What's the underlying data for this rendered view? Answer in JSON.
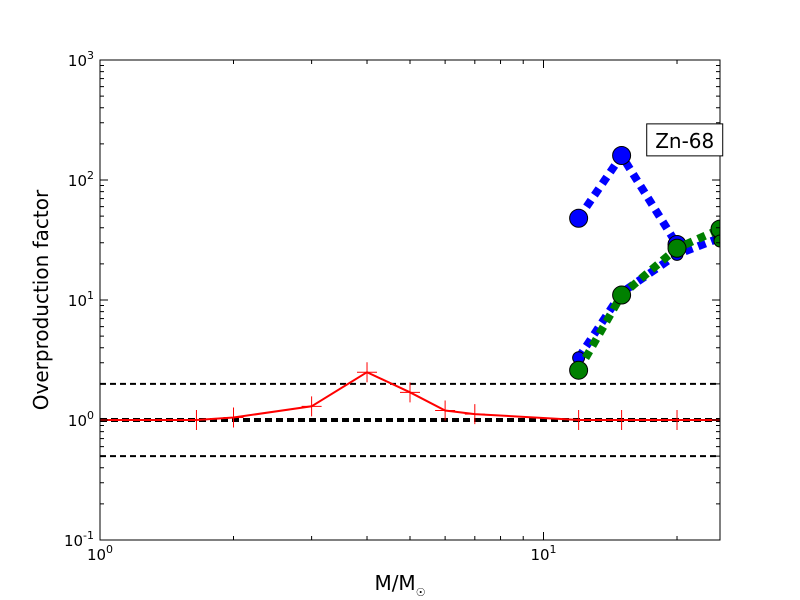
{
  "chart_data": {
    "type": "line",
    "xscale": "log",
    "yscale": "log",
    "xlim": [
      1,
      25
    ],
    "ylim": [
      0.1,
      1000
    ],
    "xlabel": "M/M",
    "xlabel_sub": "☉",
    "ylabel": "Overproduction factor",
    "x_ticks": [
      {
        "value": 1,
        "base": "10",
        "exp": "0"
      },
      {
        "value": 10,
        "base": "10",
        "exp": "1"
      }
    ],
    "y_ticks": [
      {
        "value": 0.1,
        "base": "10",
        "exp": "-1"
      },
      {
        "value": 1,
        "base": "10",
        "exp": "0"
      },
      {
        "value": 10,
        "base": "10",
        "exp": "1"
      },
      {
        "value": 100,
        "base": "10",
        "exp": "2"
      },
      {
        "value": 1000,
        "base": "10",
        "exp": "3"
      }
    ],
    "hlines": [
      {
        "y": 2,
        "style": "dashed",
        "width": "thin",
        "color": "#000000"
      },
      {
        "y": 1,
        "style": "dashed",
        "width": "thick",
        "color": "#000000"
      },
      {
        "y": 0.5,
        "style": "dashed",
        "width": "thin",
        "color": "#000000"
      }
    ],
    "series": [
      {
        "color": "#ff0000",
        "style": "solid",
        "marker": "plus",
        "x": [
          1.0,
          1.65,
          2.0,
          3.0,
          4.0,
          5.0,
          6.0,
          7.0,
          12.0,
          15.0,
          20.0,
          25.0
        ],
        "y": [
          1.0,
          1.0,
          1.05,
          1.3,
          2.5,
          1.7,
          1.2,
          1.12,
          1.0,
          1.0,
          1.0,
          1.0
        ]
      },
      {
        "color": "#0000ff",
        "style": "dotted",
        "marker": "circle-large",
        "x": [
          12.0,
          15.0,
          20.0
        ],
        "y": [
          48,
          160,
          29
        ]
      },
      {
        "color": "#0000ff",
        "style": "dotted",
        "marker": "circle-small",
        "x": [
          12.0,
          15.0,
          20.0,
          25.0
        ],
        "y": [
          3.3,
          11.5,
          24,
          33
        ]
      },
      {
        "color": "#008000",
        "style": "dotted",
        "marker": "circle-large",
        "x": [
          12.0,
          15.0,
          20.0,
          25.0
        ],
        "y": [
          2.6,
          11,
          27,
          39
        ]
      },
      {
        "color": "#008000",
        "style": "dotted",
        "marker": "circle-small",
        "x": [
          25.0
        ],
        "y": [
          31
        ]
      }
    ],
    "annotation": {
      "text": "Zn-68",
      "x": 18.0,
      "y": 200
    }
  }
}
